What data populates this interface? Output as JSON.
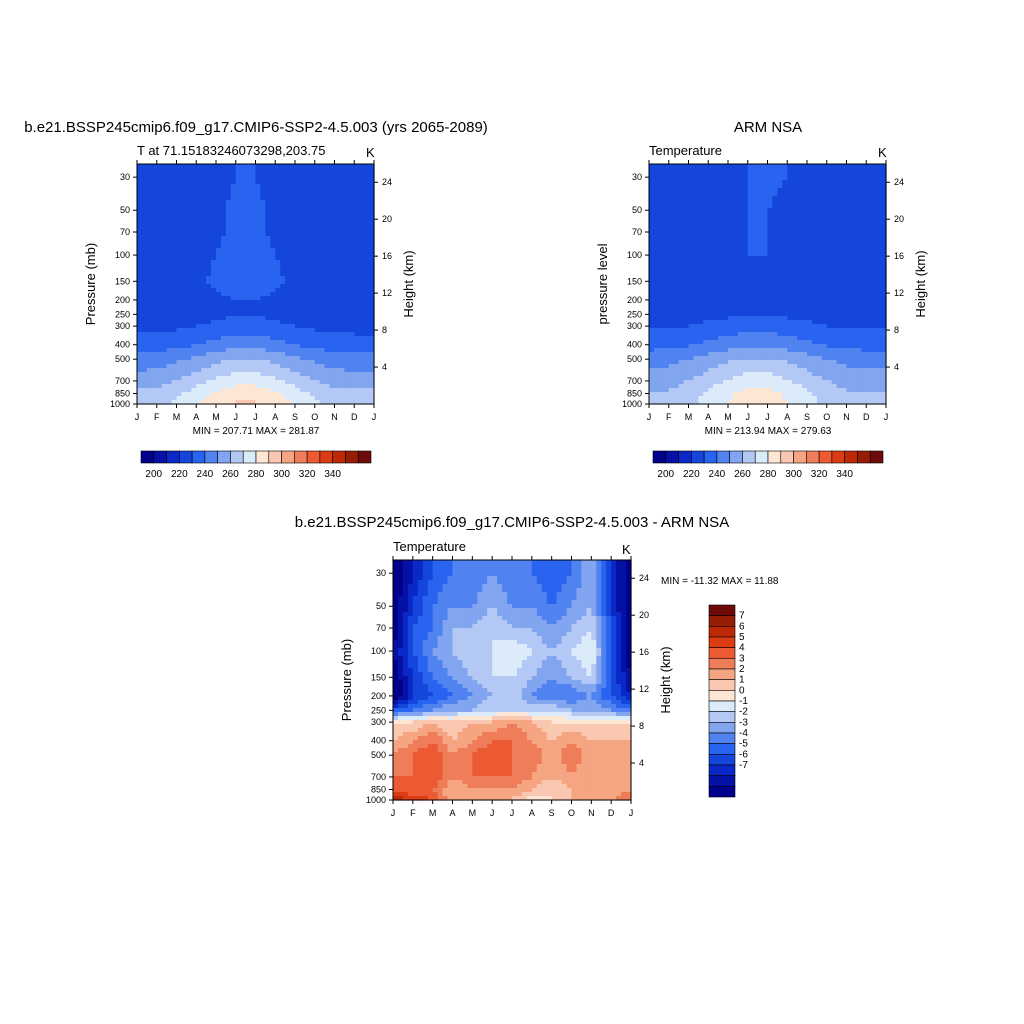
{
  "chart_data": [
    {
      "type": "heatmap",
      "title": "b.e21.BSSP245cmip6.f09_g17.CMIP6-SSP2-4.5.003 (yrs 2065-2089)",
      "left_label": "T at 71.15183246073298,203.75",
      "right_label": "K",
      "ylabel": "Pressure (mb)",
      "ylabel_right": "Height (km)",
      "x_ticks": [
        "J",
        "F",
        "M",
        "A",
        "M",
        "J",
        "J",
        "A",
        "S",
        "O",
        "N",
        "D",
        "J"
      ],
      "y_ticks": [
        "30",
        "50",
        "70",
        "100",
        "150",
        "200",
        "250",
        "300",
        "400",
        "500",
        "700",
        "850",
        "1000"
      ],
      "y_ticks_right": [
        "24",
        "20",
        "16",
        "12",
        "8",
        "4"
      ],
      "minmax": "MIN = 207.71 MAX = 281.87",
      "min": 207.71,
      "max": 281.87,
      "colorbar_ticks": [
        "200",
        "220",
        "240",
        "260",
        "280",
        "300",
        "320",
        "340"
      ],
      "levels": [
        195,
        200,
        205,
        210,
        220,
        230,
        240,
        250,
        260,
        270,
        280,
        290,
        300,
        310,
        320,
        330,
        340,
        350
      ],
      "values": [
        [
          214,
          215,
          215,
          216,
          218,
          220,
          220,
          218,
          216,
          215,
          214,
          212,
          214
        ],
        [
          214,
          215,
          216,
          217,
          219,
          221,
          221,
          219,
          217,
          216,
          215,
          214,
          214
        ],
        [
          214,
          215,
          216,
          217,
          219,
          221,
          221,
          219,
          217,
          216,
          215,
          214,
          214
        ],
        [
          213,
          215,
          217,
          218,
          220,
          222,
          222,
          220,
          218,
          216,
          214,
          213,
          213
        ],
        [
          213,
          215,
          217,
          219,
          221,
          222,
          222,
          221,
          219,
          216,
          214,
          213,
          213
        ],
        [
          213,
          214,
          216,
          218,
          219,
          220,
          220,
          219,
          217,
          215,
          213,
          213,
          213
        ],
        [
          214,
          214,
          215,
          216,
          218,
          219,
          219,
          218,
          216,
          215,
          214,
          214,
          214
        ],
        [
          217,
          217,
          218,
          220,
          222,
          224,
          224,
          222,
          220,
          218,
          217,
          217,
          217
        ],
        [
          224,
          225,
          227,
          230,
          234,
          236,
          236,
          234,
          230,
          227,
          225,
          224,
          224
        ],
        [
          234,
          235,
          238,
          242,
          247,
          250,
          250,
          247,
          242,
          238,
          235,
          234,
          234
        ],
        [
          245,
          246,
          250,
          256,
          262,
          266,
          266,
          262,
          256,
          250,
          246,
          245,
          245
        ],
        [
          252,
          253,
          258,
          265,
          272,
          276,
          276,
          272,
          265,
          258,
          253,
          252,
          252
        ],
        [
          255,
          256,
          262,
          268,
          276,
          281,
          281,
          276,
          268,
          262,
          256,
          255,
          255
        ]
      ]
    },
    {
      "type": "heatmap",
      "title": "ARM NSA",
      "left_label": "Temperature",
      "right_label": "K",
      "ylabel": "pressure level",
      "ylabel_right": "Height (km)",
      "x_ticks": [
        "J",
        "F",
        "M",
        "A",
        "M",
        "J",
        "J",
        "A",
        "S",
        "O",
        "N",
        "D",
        "J"
      ],
      "y_ticks": [
        "30",
        "50",
        "70",
        "100",
        "150",
        "200",
        "250",
        "300",
        "400",
        "500",
        "700",
        "850",
        "1000"
      ],
      "y_ticks_right": [
        "24",
        "20",
        "16",
        "12",
        "8",
        "4"
      ],
      "minmax": "MIN = 213.94 MAX = 279.63",
      "min": 213.94,
      "max": 279.63,
      "colorbar_ticks": [
        "200",
        "220",
        "240",
        "260",
        "280",
        "300",
        "320",
        "340"
      ],
      "levels": [
        195,
        200,
        205,
        210,
        220,
        230,
        240,
        250,
        260,
        270,
        280,
        290,
        300,
        310,
        320,
        330,
        340,
        350
      ],
      "values": [
        [
          215,
          216,
          217,
          218,
          219,
          220,
          221,
          220,
          218,
          216,
          215,
          215,
          216
        ],
        [
          215,
          216,
          217,
          218,
          219,
          220,
          220,
          219,
          218,
          216,
          215,
          215,
          216
        ],
        [
          215,
          216,
          217,
          218,
          219,
          220,
          220,
          219,
          218,
          216,
          215,
          215,
          216
        ],
        [
          215,
          216,
          217,
          218,
          219,
          220,
          220,
          219,
          218,
          216,
          215,
          215,
          215
        ],
        [
          214,
          215,
          216,
          217,
          218,
          219,
          219,
          218,
          217,
          216,
          215,
          214,
          214
        ],
        [
          214,
          214,
          215,
          216,
          217,
          218,
          218,
          217,
          216,
          215,
          214,
          214,
          214
        ],
        [
          215,
          215,
          216,
          217,
          218,
          219,
          219,
          218,
          217,
          216,
          215,
          215,
          215
        ],
        [
          219,
          219,
          220,
          222,
          224,
          226,
          226,
          224,
          222,
          220,
          219,
          219,
          219
        ],
        [
          226,
          227,
          229,
          232,
          236,
          238,
          238,
          236,
          232,
          229,
          227,
          226,
          226
        ],
        [
          236,
          237,
          240,
          244,
          248,
          251,
          251,
          248,
          244,
          240,
          237,
          236,
          236
        ],
        [
          245,
          246,
          250,
          255,
          261,
          265,
          265,
          261,
          255,
          250,
          246,
          245,
          245
        ],
        [
          250,
          251,
          256,
          262,
          268,
          273,
          273,
          268,
          262,
          256,
          251,
          250,
          250
        ],
        [
          253,
          254,
          258,
          264,
          271,
          276,
          276,
          271,
          264,
          258,
          254,
          253,
          253
        ]
      ]
    },
    {
      "type": "heatmap",
      "title": "b.e21.BSSP245cmip6.f09_g17.CMIP6-SSP2-4.5.003 - ARM NSA",
      "left_label": "Temperature",
      "right_label": "K",
      "ylabel": "Pressure (mb)",
      "ylabel_right": "Height (km)",
      "x_ticks": [
        "J",
        "F",
        "M",
        "A",
        "M",
        "J",
        "J",
        "A",
        "S",
        "O",
        "N",
        "D",
        "J"
      ],
      "y_ticks": [
        "30",
        "50",
        "70",
        "100",
        "150",
        "200",
        "250",
        "300",
        "400",
        "500",
        "700",
        "850",
        "1000"
      ],
      "y_ticks_right": [
        "24",
        "20",
        "16",
        "12",
        "8",
        "4"
      ],
      "minmax": "MIN = -11.32 MAX =  11.88",
      "min": -11.32,
      "max": 11.88,
      "colorbar_ticks": [
        "7",
        "6",
        "5",
        "4",
        "3",
        "2",
        "1",
        "0",
        "-1",
        "-2",
        "-3",
        "-4",
        "-5",
        "-6",
        "-7"
      ],
      "levels": [
        -100,
        -7,
        -6,
        -5,
        -4,
        -3,
        -2,
        -1,
        0,
        1,
        2,
        3,
        4,
        5,
        6,
        7,
        100
      ],
      "values": [
        [
          -8,
          -6,
          -4,
          -3,
          -3,
          -2,
          -3,
          -3,
          -4,
          -3,
          -1,
          -5,
          -8
        ],
        [
          -8,
          -5,
          -3,
          -2,
          -2,
          -1,
          -2,
          -2,
          -3,
          -2,
          -1,
          -5,
          -8
        ],
        [
          -8,
          -4,
          -3,
          -1,
          -1,
          0,
          -1,
          -1,
          -2,
          -1,
          0,
          -4,
          -8
        ],
        [
          -7,
          -4,
          -2,
          -1,
          0,
          0,
          1,
          0,
          -1,
          0,
          1,
          -4,
          -8
        ],
        [
          -8,
          -5,
          -3,
          -2,
          -1,
          0,
          0,
          -1,
          -2,
          -1,
          0,
          -4,
          -7
        ],
        [
          -9,
          -5,
          -4,
          -3,
          -2,
          -1,
          0,
          -2,
          -3,
          -3,
          -2,
          -4,
          -6
        ],
        [
          -4,
          -3,
          -2,
          -1,
          -1,
          0,
          0,
          0,
          0,
          -1,
          -1,
          -2,
          -3
        ],
        [
          2,
          2,
          3,
          2,
          3,
          3,
          4,
          3,
          2,
          2,
          2,
          2,
          2
        ],
        [
          3,
          4,
          5,
          3,
          4,
          5,
          5,
          4,
          3,
          4,
          3,
          3,
          3
        ],
        [
          4,
          5,
          6,
          4,
          5,
          6,
          5,
          5,
          3,
          5,
          3,
          3,
          4
        ],
        [
          5,
          5,
          6,
          4,
          5,
          5,
          5,
          4,
          3,
          4,
          3,
          3,
          4
        ],
        [
          6,
          5,
          5,
          3,
          4,
          4,
          4,
          3,
          2,
          3,
          3,
          3,
          4
        ],
        [
          8,
          7,
          6,
          3,
          3,
          4,
          3,
          1,
          2,
          3,
          3,
          4,
          5
        ]
      ]
    }
  ],
  "colors": {
    "abs_palette": [
      "#00008c",
      "#0511a5",
      "#0a28c8",
      "#1446dc",
      "#2864f0",
      "#5082f0",
      "#82a5f0",
      "#b4c8f5",
      "#dcebfa",
      "#fde6d4",
      "#fac8b0",
      "#f5a582",
      "#f07d5a",
      "#eb5a32",
      "#dc3c14",
      "#be2805",
      "#961e05",
      "#6e0a0a"
    ],
    "diff_palette": [
      "#00008c",
      "#0511a5",
      "#0a28c8",
      "#1446dc",
      "#2864f0",
      "#5082f0",
      "#82a5f0",
      "#b4c8f5",
      "#dcebfa",
      "#fde6d4",
      "#fac8b0",
      "#f5a582",
      "#f07d5a",
      "#eb5a32",
      "#dc3c14",
      "#be2805",
      "#961e05",
      "#6e0a0a"
    ]
  }
}
